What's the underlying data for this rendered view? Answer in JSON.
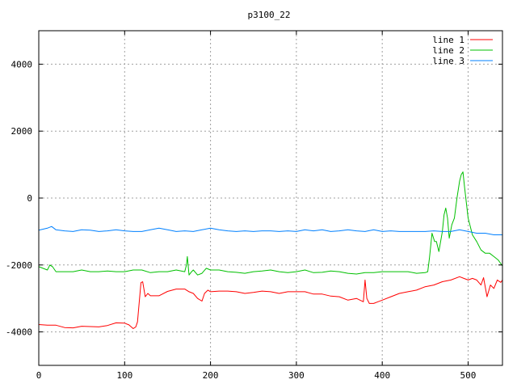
{
  "chart_data": {
    "type": "line",
    "title": "p3100_22",
    "xlabel": "",
    "ylabel": "",
    "xlim": [
      0,
      540
    ],
    "ylim": [
      -5000,
      5000
    ],
    "x_ticks": [
      0,
      100,
      200,
      300,
      400,
      500
    ],
    "y_ticks": [
      -4000,
      -2000,
      0,
      2000,
      4000
    ],
    "grid": true,
    "legend_position": "top-right",
    "series": [
      {
        "name": "line 1",
        "color": "#ff0000",
        "points": [
          [
            0,
            -3780
          ],
          [
            10,
            -3800
          ],
          [
            20,
            -3800
          ],
          [
            30,
            -3870
          ],
          [
            40,
            -3880
          ],
          [
            50,
            -3830
          ],
          [
            60,
            -3840
          ],
          [
            70,
            -3850
          ],
          [
            80,
            -3810
          ],
          [
            90,
            -3730
          ],
          [
            100,
            -3740
          ],
          [
            105,
            -3790
          ],
          [
            110,
            -3900
          ],
          [
            113,
            -3850
          ],
          [
            115,
            -3700
          ],
          [
            117,
            -3100
          ],
          [
            119,
            -2530
          ],
          [
            121,
            -2500
          ],
          [
            124,
            -2950
          ],
          [
            127,
            -2850
          ],
          [
            130,
            -2920
          ],
          [
            140,
            -2920
          ],
          [
            150,
            -2790
          ],
          [
            160,
            -2720
          ],
          [
            170,
            -2720
          ],
          [
            175,
            -2800
          ],
          [
            180,
            -2850
          ],
          [
            185,
            -3000
          ],
          [
            190,
            -3080
          ],
          [
            193,
            -2850
          ],
          [
            197,
            -2750
          ],
          [
            200,
            -2800
          ],
          [
            210,
            -2780
          ],
          [
            220,
            -2780
          ],
          [
            230,
            -2800
          ],
          [
            240,
            -2850
          ],
          [
            250,
            -2820
          ],
          [
            260,
            -2780
          ],
          [
            270,
            -2800
          ],
          [
            280,
            -2850
          ],
          [
            290,
            -2800
          ],
          [
            300,
            -2800
          ],
          [
            310,
            -2800
          ],
          [
            320,
            -2870
          ],
          [
            330,
            -2870
          ],
          [
            340,
            -2930
          ],
          [
            350,
            -2950
          ],
          [
            360,
            -3050
          ],
          [
            370,
            -3000
          ],
          [
            378,
            -3100
          ],
          [
            380,
            -2450
          ],
          [
            382,
            -3000
          ],
          [
            385,
            -3150
          ],
          [
            390,
            -3150
          ],
          [
            395,
            -3100
          ],
          [
            400,
            -3050
          ],
          [
            410,
            -2950
          ],
          [
            420,
            -2850
          ],
          [
            430,
            -2800
          ],
          [
            440,
            -2750
          ],
          [
            450,
            -2650
          ],
          [
            460,
            -2600
          ],
          [
            470,
            -2500
          ],
          [
            480,
            -2450
          ],
          [
            490,
            -2350
          ],
          [
            495,
            -2400
          ],
          [
            500,
            -2450
          ],
          [
            505,
            -2400
          ],
          [
            510,
            -2450
          ],
          [
            515,
            -2600
          ],
          [
            518,
            -2380
          ],
          [
            522,
            -2950
          ],
          [
            526,
            -2600
          ],
          [
            530,
            -2700
          ],
          [
            534,
            -2450
          ],
          [
            538,
            -2520
          ],
          [
            540,
            -2450
          ]
        ]
      },
      {
        "name": "line 2",
        "color": "#00c000",
        "points": [
          [
            0,
            -2050
          ],
          [
            10,
            -2150
          ],
          [
            13,
            -2000
          ],
          [
            16,
            -2050
          ],
          [
            20,
            -2200
          ],
          [
            30,
            -2200
          ],
          [
            40,
            -2200
          ],
          [
            50,
            -2150
          ],
          [
            60,
            -2200
          ],
          [
            70,
            -2200
          ],
          [
            80,
            -2180
          ],
          [
            90,
            -2200
          ],
          [
            100,
            -2200
          ],
          [
            110,
            -2150
          ],
          [
            120,
            -2150
          ],
          [
            130,
            -2230
          ],
          [
            140,
            -2200
          ],
          [
            150,
            -2200
          ],
          [
            160,
            -2150
          ],
          [
            170,
            -2200
          ],
          [
            172,
            -2000
          ],
          [
            173,
            -1750
          ],
          [
            175,
            -2300
          ],
          [
            178,
            -2200
          ],
          [
            180,
            -2150
          ],
          [
            185,
            -2300
          ],
          [
            190,
            -2250
          ],
          [
            195,
            -2100
          ],
          [
            200,
            -2150
          ],
          [
            210,
            -2150
          ],
          [
            220,
            -2200
          ],
          [
            230,
            -2220
          ],
          [
            240,
            -2250
          ],
          [
            250,
            -2200
          ],
          [
            260,
            -2180
          ],
          [
            270,
            -2150
          ],
          [
            280,
            -2200
          ],
          [
            290,
            -2230
          ],
          [
            300,
            -2200
          ],
          [
            310,
            -2150
          ],
          [
            320,
            -2230
          ],
          [
            330,
            -2220
          ],
          [
            340,
            -2180
          ],
          [
            350,
            -2200
          ],
          [
            360,
            -2250
          ],
          [
            370,
            -2270
          ],
          [
            380,
            -2230
          ],
          [
            390,
            -2230
          ],
          [
            400,
            -2200
          ],
          [
            410,
            -2200
          ],
          [
            420,
            -2200
          ],
          [
            430,
            -2200
          ],
          [
            440,
            -2250
          ],
          [
            450,
            -2230
          ],
          [
            453,
            -2200
          ],
          [
            455,
            -1800
          ],
          [
            458,
            -1050
          ],
          [
            461,
            -1300
          ],
          [
            463,
            -1300
          ],
          [
            466,
            -1600
          ],
          [
            470,
            -1000
          ],
          [
            472,
            -500
          ],
          [
            474,
            -300
          ],
          [
            476,
            -600
          ],
          [
            478,
            -1200
          ],
          [
            481,
            -800
          ],
          [
            484,
            -600
          ],
          [
            487,
            0
          ],
          [
            490,
            500
          ],
          [
            492,
            700
          ],
          [
            494,
            780
          ],
          [
            496,
            300
          ],
          [
            500,
            -600
          ],
          [
            505,
            -1100
          ],
          [
            510,
            -1300
          ],
          [
            515,
            -1550
          ],
          [
            520,
            -1650
          ],
          [
            525,
            -1650
          ],
          [
            530,
            -1750
          ],
          [
            535,
            -1850
          ],
          [
            540,
            -2030
          ]
        ]
      },
      {
        "name": "line 3",
        "color": "#0080ff",
        "points": [
          [
            0,
            -960
          ],
          [
            10,
            -900
          ],
          [
            15,
            -850
          ],
          [
            20,
            -950
          ],
          [
            30,
            -980
          ],
          [
            40,
            -1000
          ],
          [
            50,
            -950
          ],
          [
            60,
            -960
          ],
          [
            70,
            -1000
          ],
          [
            80,
            -980
          ],
          [
            90,
            -950
          ],
          [
            100,
            -980
          ],
          [
            110,
            -1000
          ],
          [
            120,
            -1000
          ],
          [
            130,
            -950
          ],
          [
            140,
            -900
          ],
          [
            150,
            -950
          ],
          [
            160,
            -1000
          ],
          [
            170,
            -980
          ],
          [
            180,
            -1000
          ],
          [
            190,
            -950
          ],
          [
            200,
            -900
          ],
          [
            210,
            -950
          ],
          [
            220,
            -980
          ],
          [
            230,
            -1000
          ],
          [
            240,
            -980
          ],
          [
            250,
            -1000
          ],
          [
            260,
            -980
          ],
          [
            270,
            -980
          ],
          [
            280,
            -1000
          ],
          [
            290,
            -980
          ],
          [
            300,
            -1000
          ],
          [
            310,
            -950
          ],
          [
            320,
            -980
          ],
          [
            330,
            -950
          ],
          [
            340,
            -1000
          ],
          [
            350,
            -980
          ],
          [
            360,
            -950
          ],
          [
            370,
            -980
          ],
          [
            380,
            -1000
          ],
          [
            390,
            -950
          ],
          [
            400,
            -1000
          ],
          [
            410,
            -980
          ],
          [
            420,
            -1000
          ],
          [
            430,
            -1000
          ],
          [
            440,
            -1000
          ],
          [
            450,
            -1000
          ],
          [
            460,
            -980
          ],
          [
            470,
            -1000
          ],
          [
            480,
            -1000
          ],
          [
            490,
            -950
          ],
          [
            500,
            -1000
          ],
          [
            510,
            -1050
          ],
          [
            520,
            -1050
          ],
          [
            530,
            -1100
          ],
          [
            540,
            -1100
          ]
        ]
      }
    ]
  }
}
